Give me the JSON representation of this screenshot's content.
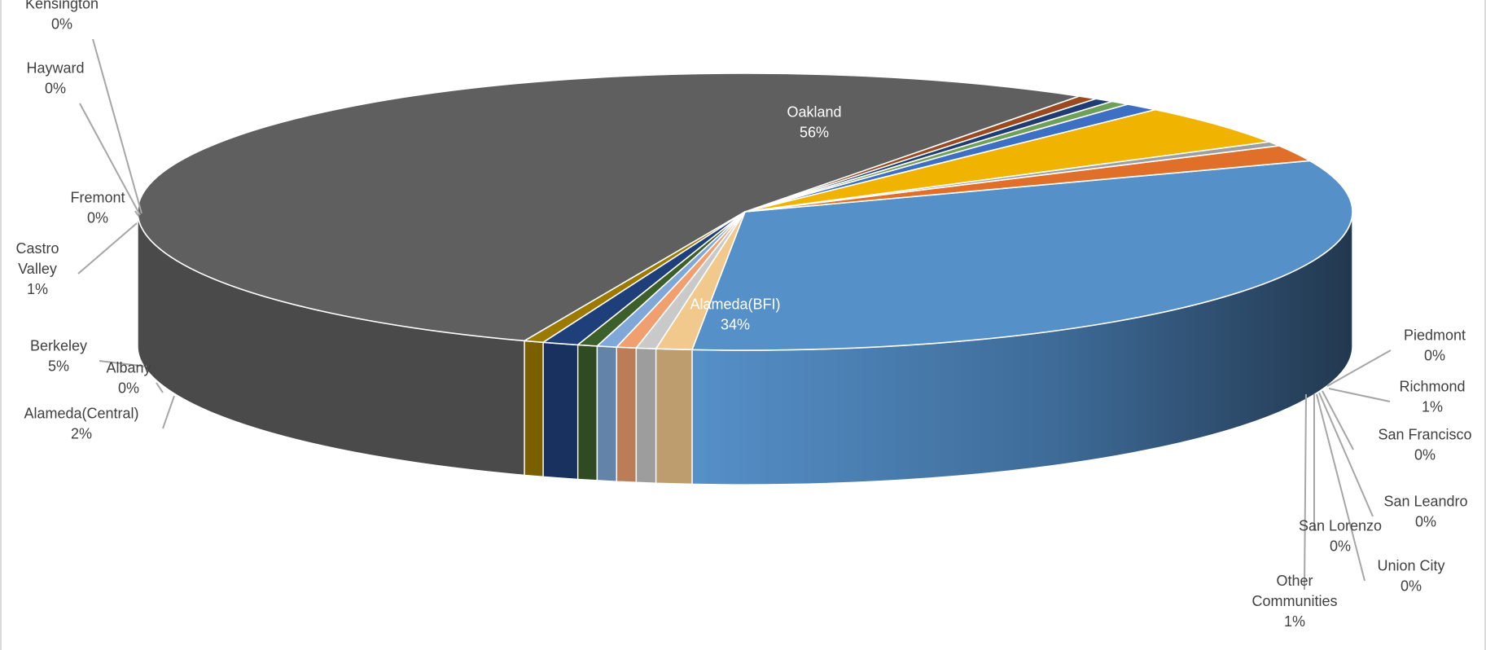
{
  "chart_data": {
    "type": "pie",
    "style": "3d",
    "title": "",
    "legend": "none",
    "series": [
      {
        "values": [
          {
            "label": "Alameda(BFI)",
            "value": 34,
            "display": "34%",
            "color": "#5590c8"
          },
          {
            "label": "Alameda(Central)",
            "value": 2,
            "display": "2%",
            "color": "#e07029"
          },
          {
            "label": "Albany",
            "value": 0,
            "display": "0%",
            "color": "#9e9e9e"
          },
          {
            "label": "Berkeley",
            "value": 5,
            "display": "5%",
            "color": "#f0b400"
          },
          {
            "label": "Castro Valley",
            "value": 1,
            "display": "1%",
            "color": "#3d6fc2"
          },
          {
            "label": "Fremont",
            "value": 0,
            "display": "0%",
            "color": "#6fa05a"
          },
          {
            "label": "Hayward",
            "value": 0,
            "display": "0%",
            "color": "#1f3d73"
          },
          {
            "label": "Kensington",
            "value": 0,
            "display": "0%",
            "color": "#9b4a20"
          },
          {
            "label": "Oakland",
            "value": 56,
            "display": "56%",
            "color": "#5f5f5f"
          },
          {
            "label": "Piedmont",
            "value": 0,
            "display": "0%",
            "color": "#9c7a00"
          },
          {
            "label": "Richmond",
            "value": 1,
            "display": "1%",
            "color": "#1f3f7a"
          },
          {
            "label": "San Francisco",
            "value": 0,
            "display": "0%",
            "color": "#3d5f2a"
          },
          {
            "label": "San Leandro",
            "value": 0,
            "display": "0%",
            "color": "#7fa8d9"
          },
          {
            "label": "San Lorenzo",
            "value": 0,
            "display": "0%",
            "color": "#f0a070"
          },
          {
            "label": "Union City",
            "value": 0,
            "display": "0%",
            "color": "#c9c9c9"
          },
          {
            "label": "Other Communities",
            "value": 1,
            "display": "1%",
            "color": "#f2c98c"
          }
        ]
      }
    ]
  }
}
